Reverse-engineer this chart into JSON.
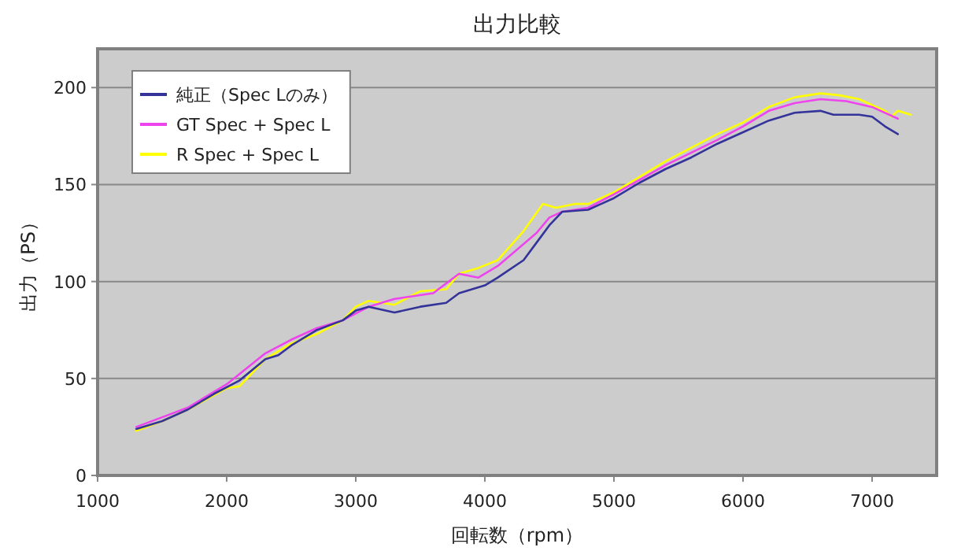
{
  "chart_data": {
    "type": "line",
    "title": "出力比較",
    "xlabel": "回転数（rpm）",
    "ylabel": "出力（PS）",
    "xlim": [
      1000,
      7500
    ],
    "xticks": [
      1000,
      2000,
      3000,
      4000,
      5000,
      6000,
      7000
    ],
    "ylim": [
      0,
      220
    ],
    "yticks": [
      0,
      50,
      100,
      150,
      200
    ],
    "grid": "y",
    "legend": "top left",
    "line_style": "solid",
    "series": [
      {
        "name": "純正（Spec Lのみ）",
        "color": "#333399",
        "x": [
          1300,
          1500,
          1700,
          1900,
          2100,
          2300,
          2400,
          2500,
          2700,
          2900,
          3000,
          3100,
          3300,
          3500,
          3700,
          3800,
          4000,
          4100,
          4300,
          4400,
          4500,
          4600,
          4800,
          5000,
          5200,
          5400,
          5600,
          5800,
          6000,
          6200,
          6400,
          6600,
          6700,
          6900,
          7000,
          7100,
          7200
        ],
        "values": [
          24,
          28,
          34,
          42,
          49,
          60,
          62,
          67,
          75,
          80,
          85,
          87,
          84,
          87,
          89,
          94,
          98,
          102,
          111,
          120,
          129,
          136,
          137,
          143,
          151,
          158,
          164,
          171,
          177,
          183,
          187,
          188,
          186,
          186,
          185,
          180,
          176
        ]
      },
      {
        "name": "GT Spec + Spec L",
        "color": "#ee44ee",
        "x": [
          1300,
          1500,
          1700,
          2000,
          2300,
          2500,
          2700,
          2900,
          3100,
          3300,
          3600,
          3800,
          3950,
          4100,
          4400,
          4500,
          4600,
          4800,
          5000,
          5400,
          5800,
          6000,
          6200,
          6400,
          6600,
          6800,
          7000,
          7200
        ],
        "values": [
          25,
          30,
          35,
          47,
          63,
          70,
          76,
          80,
          87,
          91,
          94,
          104,
          102,
          108,
          125,
          133,
          136,
          138,
          145,
          160,
          173,
          180,
          188,
          192,
          194,
          193,
          190,
          184
        ]
      },
      {
        "name": "R Spec + Spec L",
        "color": "#ffff00",
        "x": [
          1300,
          1500,
          1700,
          2000,
          2100,
          2300,
          2500,
          2700,
          2900,
          3000,
          3100,
          3300,
          3500,
          3700,
          3800,
          3950,
          4100,
          4300,
          4450,
          4550,
          4700,
          4800,
          5000,
          5400,
          5800,
          6000,
          6200,
          6400,
          6600,
          6750,
          6900,
          7100,
          7150,
          7200,
          7300
        ],
        "values": [
          23,
          28,
          34,
          45,
          46,
          60,
          68,
          73,
          80,
          87,
          90,
          88,
          95,
          96,
          104,
          107,
          111,
          126,
          140,
          138,
          140,
          140,
          146,
          162,
          176,
          182,
          190,
          195,
          197,
          196,
          194,
          188,
          185,
          188,
          186
        ]
      }
    ]
  }
}
